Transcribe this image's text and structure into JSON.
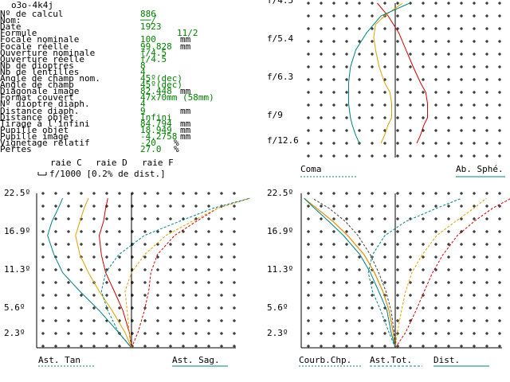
{
  "window_title": "o3o-4k4j",
  "params": [
    {
      "label": "Nº de calcul",
      "value": "886",
      "unit": ""
    },
    {
      "label": "Nom:",
      "value": "──╱",
      "unit": ""
    },
    {
      "label": "Date",
      "value": "1923",
      "unit": ""
    },
    {
      "label": "Formule",
      "value": "11/2",
      "unit": ""
    },
    {
      "label": "Focale nominale",
      "value": "100",
      "unit": "mm"
    },
    {
      "label": "Focale réelle",
      "value": "99.828",
      "unit": "mm"
    },
    {
      "label": "Ouverture nominale",
      "value": "f/4.5",
      "unit": ""
    },
    {
      "label": "Ouverture réelle",
      "value": "f/4.5",
      "unit": ""
    },
    {
      "label": "Nb de dioptres",
      "value": "8",
      "unit": ""
    },
    {
      "label": "Nb de lentilles",
      "value": "4",
      "unit": ""
    },
    {
      "label": "Angle de champ nom.",
      "value": "45º(dec)",
      "unit": ""
    },
    {
      "label": "Angle de champ",
      "value": "45º(dec)",
      "unit": ""
    },
    {
      "label": "Diagonale image",
      "value": "82.448",
      "unit": "mm"
    },
    {
      "label": "Format couvert",
      "value": "47x70mm (58mm)",
      "unit": ""
    },
    {
      "label": "Nº dioptre diaph.",
      "value": "4",
      "unit": ""
    },
    {
      "label": "Distance diaph.",
      "value": "9",
      "unit": "mm"
    },
    {
      "label": "Distance objet",
      "value": "Infini",
      "unit": ""
    },
    {
      "label": "Tirage à l'infini",
      "value": "84.794",
      "unit": "mm"
    },
    {
      "label": "Pupille objet",
      "value": "18.949",
      "unit": "mm"
    },
    {
      "label": "Pupille image",
      "value": "-4.2758",
      "unit": "mm"
    },
    {
      "label": "Vignetage relatif",
      "value": "-20",
      "unit": "%"
    },
    {
      "label": "Pertes",
      "value": "27.0",
      "unit": "%"
    }
  ],
  "legend": {
    "raie_c": "raie C",
    "raie_d": "raie D",
    "raie_f": "raie F",
    "scale_note": "f/1000 [0.2% de dist.]"
  },
  "colors": {
    "raie_c": "#d00000",
    "raie_d": "#e0a000",
    "raie_f": "#008080",
    "values": "#008000"
  },
  "chart_data": [
    {
      "type": "line",
      "panel": "coma-spherical",
      "y_tick_labels": [
        "f/4.5",
        "f/5.4",
        "f/6.3",
        "f/9",
        "f/12.6"
      ],
      "bottom_labels": [
        "Coma",
        "Ab. Sphé."
      ],
      "series": [
        {
          "name": "raie C",
          "x": [
            0.6,
            0.7,
            0.8,
            0.9,
            0.9,
            0.85,
            0.7,
            0.5,
            0.3,
            0.1,
            -0.2,
            -0.5
          ],
          "y": [
            12.6,
            11.5,
            10,
            9,
            8,
            7.2,
            6.5,
            6,
            5.6,
            5.2,
            4.8,
            4.5
          ]
        },
        {
          "name": "raie D",
          "x": [
            -0.4,
            -0.3,
            -0.2,
            -0.1,
            -0.1,
            -0.15,
            -0.3,
            -0.45,
            -0.55,
            -0.6,
            -0.55,
            -0.3,
            0.2
          ],
          "y": [
            12.6,
            11.5,
            10,
            9,
            8,
            7.2,
            6.5,
            6,
            5.6,
            5.3,
            5,
            4.8,
            4.5
          ]
        },
        {
          "name": "raie F",
          "x": [
            -1.0,
            -1.1,
            -1.2,
            -1.25,
            -1.3,
            -1.3,
            -1.3,
            -1.25,
            -1.1,
            -0.8,
            -0.4,
            0.4
          ],
          "y": [
            12.6,
            11.5,
            10,
            9,
            8,
            7.2,
            6.5,
            6,
            5.6,
            5.2,
            4.8,
            4.5
          ]
        }
      ]
    },
    {
      "type": "line",
      "panel": "astigmatism",
      "y_tick_labels": [
        "22.5º",
        "16.9º",
        "11.3º",
        "5.6º",
        "2.3º"
      ],
      "bottom_labels": [
        "Ast. Tan",
        "Ast. Sag."
      ],
      "series": [
        {
          "name": "raie C",
          "kind": "tan",
          "x": [
            0,
            -0.1,
            -0.4,
            -0.8,
            -1.2,
            -1.4,
            -1.5,
            -1.3,
            -1.2,
            -1.1
          ],
          "y": [
            0,
            2.3,
            5.6,
            8.5,
            11.3,
            14,
            16.9,
            19,
            21,
            22.5
          ]
        },
        {
          "name": "raie D",
          "kind": "tan",
          "x": [
            0,
            -0.3,
            -0.9,
            -1.5,
            -2,
            -2.4,
            -2.6,
            -2.4,
            -2.2,
            -2
          ],
          "y": [
            0,
            2.3,
            5.6,
            8.5,
            11.3,
            14,
            16.9,
            19,
            21,
            22.5
          ]
        },
        {
          "name": "raie F",
          "kind": "tan",
          "x": [
            0,
            -0.6,
            -1.5,
            -2.4,
            -3.2,
            -3.6,
            -3.9,
            -3.7,
            -3.4,
            -3.2
          ],
          "y": [
            0,
            2.3,
            5.6,
            8.5,
            11.3,
            14,
            16.9,
            19,
            21,
            22.5
          ]
        },
        {
          "name": "raie C",
          "kind": "sag",
          "x": [
            0,
            0.3,
            0.6,
            0.8,
            0.9,
            1.2,
            2,
            3,
            4,
            5.5
          ],
          "y": [
            0,
            2.3,
            5.6,
            8.5,
            11.3,
            14,
            16.9,
            19,
            21,
            22.5
          ]
        },
        {
          "name": "raie D",
          "kind": "sag",
          "x": [
            0,
            -0.1,
            -0.2,
            -0.3,
            0,
            0.6,
            1.6,
            2.8,
            4,
            5.5
          ],
          "y": [
            0,
            2.3,
            5.6,
            8.5,
            11.3,
            14,
            16.9,
            19,
            21,
            22.5
          ]
        },
        {
          "name": "raie F",
          "kind": "sag",
          "x": [
            0,
            -0.6,
            -1.1,
            -1.4,
            -1.2,
            -0.6,
            0.6,
            2.2,
            3.8,
            5.5
          ],
          "y": [
            0,
            2.3,
            5.6,
            8.5,
            11.3,
            14,
            16.9,
            19,
            21,
            22.5
          ]
        }
      ]
    },
    {
      "type": "line",
      "panel": "field-curvature",
      "y_tick_labels": [
        "22.5º",
        "16.9º",
        "11.3º",
        "5.6º",
        "2.3º"
      ],
      "bottom_labels": [
        "Courb.Chp.",
        "Ast.Tot.",
        "Dist."
      ],
      "series": [
        {
          "name": "raie C",
          "kind": "curv",
          "x": [
            0,
            -0.1,
            -0.3,
            -0.6,
            -1,
            -1.5,
            -2.3,
            -3,
            -3.8,
            -4.4
          ],
          "y": [
            0,
            2.3,
            5.6,
            8.5,
            11.3,
            14,
            16.9,
            19,
            21,
            22.5
          ]
        },
        {
          "name": "raie D",
          "kind": "curv",
          "x": [
            0,
            -0.1,
            -0.3,
            -0.6,
            -1,
            -1.5,
            -2.3,
            -3,
            -3.8,
            -4.4
          ],
          "y": [
            0,
            2.3,
            5.6,
            8.5,
            11.3,
            14,
            16.9,
            19,
            21,
            22.5
          ]
        },
        {
          "name": "raie F",
          "kind": "curv",
          "x": [
            0,
            -0.2,
            -0.4,
            -0.8,
            -1.2,
            -1.7,
            -2.5,
            -3.2,
            -3.9,
            -4.4
          ],
          "y": [
            0,
            2.3,
            5.6,
            8.5,
            11.3,
            14,
            16.9,
            19,
            21,
            22.5
          ]
        },
        {
          "name": "raie C",
          "kind": "ast",
          "x": [
            0,
            0.5,
            1,
            1.4,
            1.8,
            2.3,
            3,
            3.8,
            4.7,
            5.6
          ],
          "y": [
            0,
            2.3,
            5.6,
            8.5,
            11.3,
            14,
            16.9,
            19,
            21,
            22.5
          ]
        },
        {
          "name": "raie D",
          "kind": "ast",
          "x": [
            0,
            0.1,
            0.3,
            0.5,
            0.8,
            1.3,
            2,
            2.9,
            3.8,
            4.4
          ],
          "y": [
            0,
            2.3,
            5.6,
            8.5,
            11.3,
            14,
            16.9,
            19,
            21,
            22.5
          ]
        },
        {
          "name": "raie F",
          "kind": "ast",
          "x": [
            0,
            -0.3,
            -0.7,
            -1.1,
            -1.3,
            -1.1,
            -0.5,
            0.5,
            2,
            3.2
          ],
          "y": [
            0,
            2.3,
            5.6,
            8.5,
            11.3,
            14,
            16.9,
            19,
            21,
            22.5
          ]
        },
        {
          "name": "dist",
          "kind": "dist",
          "x": [
            0,
            -0.05,
            -0.2,
            -0.45,
            -0.8,
            -1.2,
            -1.8,
            -2.4,
            -3.2,
            -4.0
          ],
          "y": [
            0,
            2.3,
            5.6,
            8.5,
            11.3,
            14,
            16.9,
            19,
            21,
            22.5
          ]
        }
      ]
    }
  ]
}
